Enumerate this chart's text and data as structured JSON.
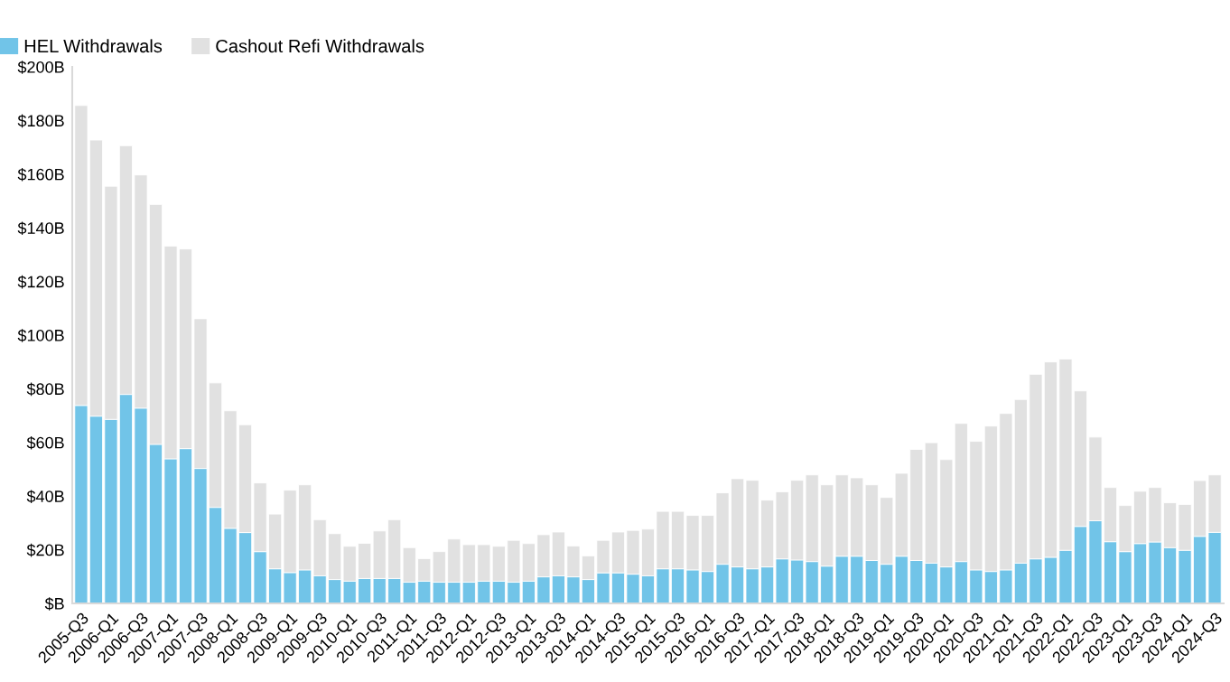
{
  "chart_data": {
    "type": "bar",
    "stacked": true,
    "categories": [
      "2005-Q3",
      null,
      "2006-Q1",
      null,
      "2006-Q3",
      null,
      "2007-Q1",
      null,
      "2007-Q3",
      null,
      "2008-Q1",
      null,
      "2008-Q3",
      null,
      "2009-Q1",
      null,
      "2009-Q3",
      null,
      "2010-Q1",
      null,
      "2010-Q3",
      null,
      "2011-Q1",
      null,
      "2011-Q3",
      null,
      "2012-Q1",
      null,
      "2012-Q3",
      null,
      "2013-Q1",
      null,
      "2013-Q3",
      null,
      "2014-Q1",
      null,
      "2014-Q3",
      null,
      "2015-Q1",
      null,
      "2015-Q3",
      null,
      "2016-Q1",
      null,
      "2016-Q3",
      null,
      "2017-Q1",
      null,
      "2017-Q3",
      null,
      "2018-Q1",
      null,
      "2018-Q3",
      null,
      "2019-Q1",
      null,
      "2019-Q3",
      null,
      "2020-Q1",
      null,
      "2020-Q3",
      null,
      "2021-Q1",
      null,
      "2021-Q3",
      null,
      "2022-Q1",
      null,
      "2022-Q3",
      null,
      "2023-Q1",
      null,
      "2023-Q3",
      null,
      "2024-Q1",
      null,
      "2024-Q3"
    ],
    "series": [
      {
        "name": "HEL Withdrawals",
        "color": "#71c4e8",
        "values": [
          73.8,
          69.8,
          68.6,
          77.9,
          72.8,
          59.3,
          53.9,
          57.7,
          50.3,
          35.8,
          28.0,
          26.4,
          19.3,
          12.9,
          11.5,
          12.5,
          10.3,
          8.9,
          8.3,
          9.3,
          9.3,
          9.3,
          7.9,
          8.3,
          7.9,
          7.9,
          7.9,
          8.3,
          8.3,
          7.9,
          8.3,
          9.9,
          10.3,
          9.9,
          8.9,
          11.4,
          11.4,
          10.9,
          10.3,
          12.9,
          12.9,
          12.5,
          11.9,
          14.6,
          13.6,
          12.9,
          13.6,
          16.6,
          16.2,
          15.6,
          13.9,
          17.6,
          17.6,
          16.0,
          14.6,
          17.6,
          16.0,
          15.0,
          13.6,
          15.6,
          12.5,
          11.9,
          12.5,
          15.0,
          16.6,
          17.2,
          19.8,
          28.7,
          30.8,
          23.0,
          19.3,
          22.3,
          22.9,
          20.8,
          19.8,
          25.0,
          26.5
        ]
      },
      {
        "name": "Cashout Refi Withdrawals",
        "color": "#e1e1e1",
        "values": [
          111.8,
          102.9,
          86.9,
          92.7,
          86.9,
          89.4,
          79.3,
          74.4,
          55.8,
          46.4,
          43.8,
          40.2,
          25.6,
          20.4,
          30.7,
          31.7,
          20.9,
          17.1,
          13.0,
          13.1,
          17.7,
          21.9,
          12.9,
          8.4,
          11.4,
          16.1,
          14.0,
          13.6,
          13.0,
          15.6,
          14.0,
          15.7,
          16.3,
          11.5,
          8.8,
          12.1,
          15.2,
          16.3,
          17.4,
          21.4,
          21.4,
          20.3,
          20.9,
          26.6,
          32.9,
          33.0,
          24.9,
          25.0,
          29.7,
          32.3,
          30.3,
          30.3,
          29.2,
          28.2,
          24.9,
          30.9,
          41.4,
          44.9,
          40.0,
          51.5,
          47.9,
          54.2,
          58.3,
          61.0,
          68.8,
          72.8,
          71.3,
          50.5,
          31.2,
          20.2,
          17.2,
          19.5,
          20.3,
          16.7,
          17.1,
          20.8,
          21.4
        ]
      }
    ],
    "ylim": [
      0,
      200
    ],
    "yticks": [
      {
        "value": 0,
        "label": "$B"
      },
      {
        "value": 20,
        "label": "$20B"
      },
      {
        "value": 40,
        "label": "$40B"
      },
      {
        "value": 60,
        "label": "$60B"
      },
      {
        "value": 80,
        "label": "$80B"
      },
      {
        "value": 100,
        "label": "$100B"
      },
      {
        "value": 120,
        "label": "$120B"
      },
      {
        "value": 140,
        "label": "$140B"
      },
      {
        "value": 160,
        "label": "$160B"
      },
      {
        "value": 180,
        "label": "$180B"
      },
      {
        "value": 200,
        "label": "$200B"
      }
    ],
    "grid": false,
    "legend": "top left"
  }
}
